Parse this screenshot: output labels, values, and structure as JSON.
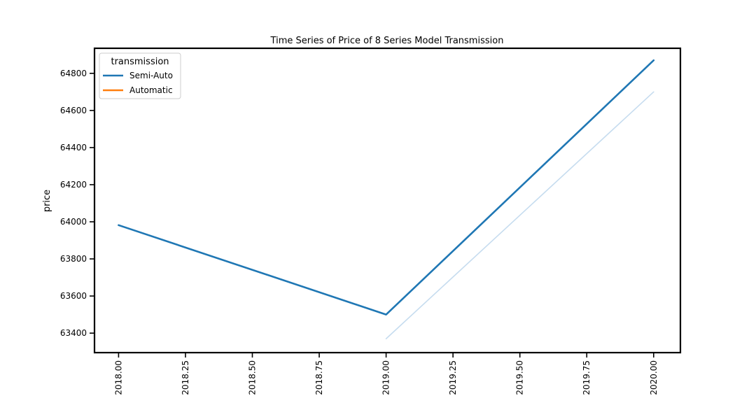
{
  "chart_data": {
    "type": "line",
    "title": "Time Series of Price of 8 Series Model Transmission",
    "xlabel": "",
    "ylabel": "price",
    "xlim": [
      2017.91,
      2020.1
    ],
    "ylim": [
      63295,
      64935
    ],
    "x_ticks": [
      "2018.00",
      "2018.25",
      "2018.50",
      "2018.75",
      "2019.00",
      "2019.25",
      "2019.50",
      "2019.75",
      "2020.00"
    ],
    "y_ticks": [
      "63400",
      "63600",
      "63800",
      "64000",
      "64200",
      "64400",
      "64600",
      "64800"
    ],
    "grid": false,
    "legend": {
      "title": "transmission",
      "placement": "top-left",
      "entries": [
        {
          "name": "Semi-Auto",
          "color": "#1f77b4"
        },
        {
          "name": "Automatic",
          "color": "#ff7f0e"
        }
      ]
    },
    "series": [
      {
        "name": "Semi-Auto",
        "color": "#1f77b4",
        "points": [
          {
            "x": 2018.0,
            "y": 63982
          },
          {
            "x": 2019.0,
            "y": 63500
          },
          {
            "x": 2020.0,
            "y": 64870
          }
        ]
      },
      {
        "color": "#c6dcef",
        "points": [
          {
            "x": 2019.0,
            "y": 63370
          },
          {
            "x": 2020.0,
            "y": 64700
          }
        ]
      }
    ]
  }
}
